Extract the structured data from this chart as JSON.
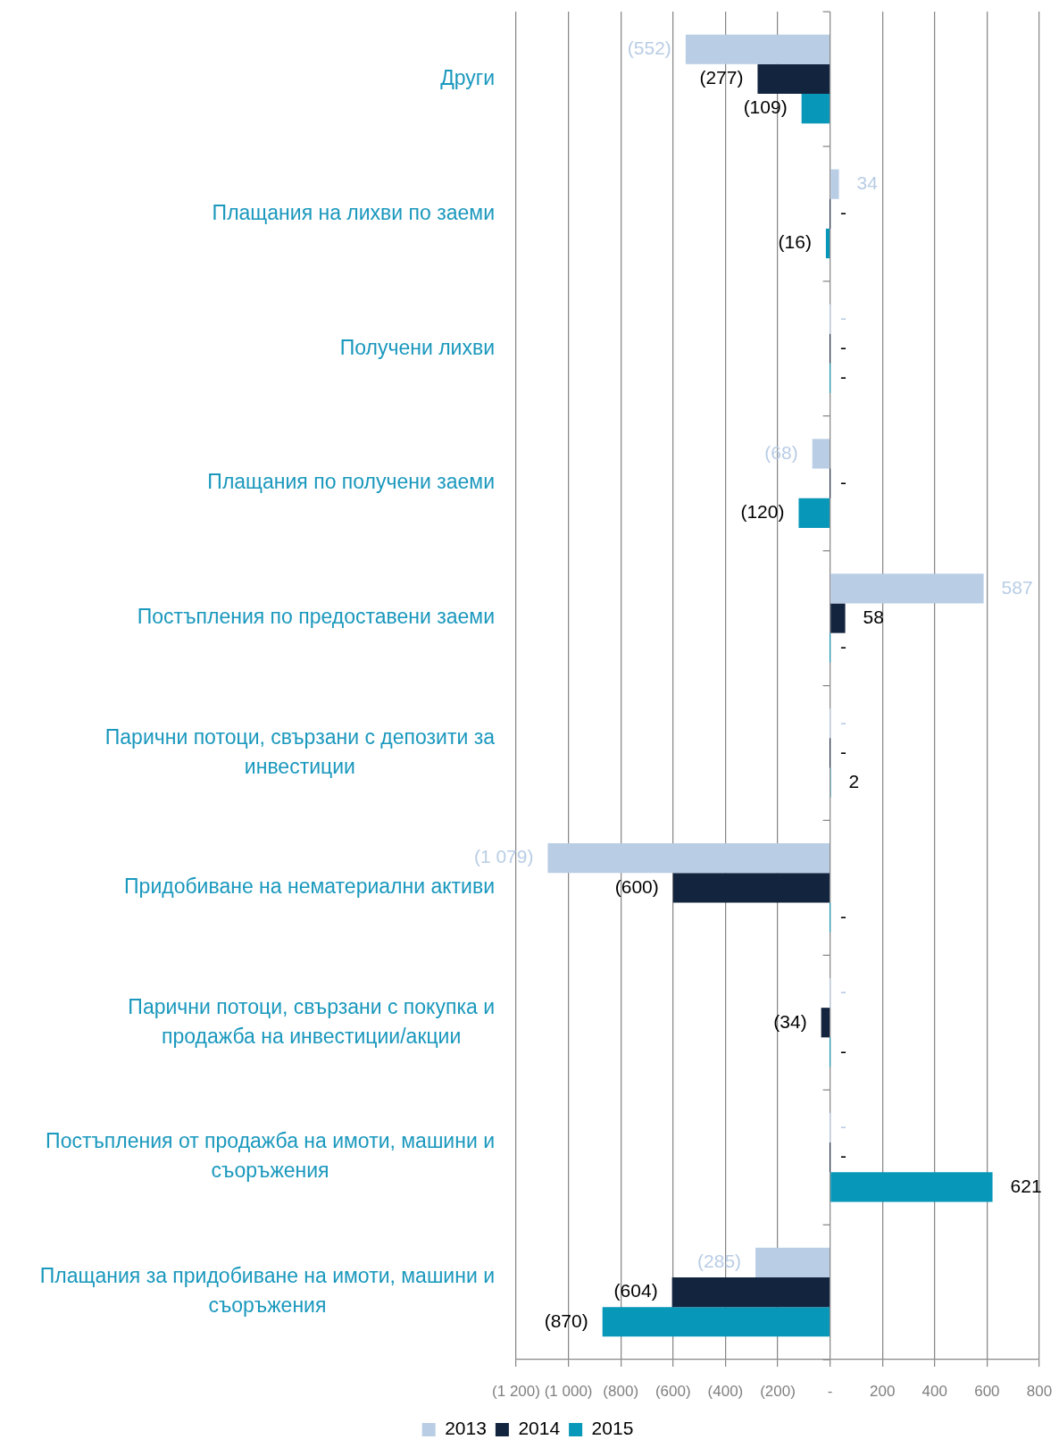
{
  "chart_data": {
    "type": "bar",
    "orientation": "horizontal",
    "categories": [
      "Други",
      "Плащания на лихви по заеми",
      "Получени лихви",
      "Плащания по получени заеми",
      "Постъпления по предоставени заеми",
      "Парични потоци, свързани с депозити за инвестиции",
      "Придобиване на нематериални активи",
      "Парични потоци, свързани с покупка и продажба на инвестиции/акции",
      "Постъпления от продажба на имоти, машини и съоръжения",
      "Плащания за придобиване на имоти, машини и съоръжения"
    ],
    "series": [
      {
        "name": "2013",
        "color": "#b9cde5",
        "values": [
          -552,
          34,
          0,
          -68,
          587,
          0,
          -1079,
          0,
          0,
          -285
        ],
        "value_labels": [
          "(552)",
          "34",
          "-",
          "(68)",
          "587",
          "-",
          "(1 079)",
          "-",
          "-",
          "(285)"
        ]
      },
      {
        "name": "2014",
        "color": "#13243f",
        "values": [
          -277,
          0,
          0,
          0,
          58,
          0,
          -600,
          -34,
          0,
          -604
        ],
        "value_labels": [
          "(277)",
          "-",
          "-",
          "-",
          "58",
          "-",
          "(600)",
          "(34)",
          "-",
          "(604)"
        ]
      },
      {
        "name": "2015",
        "color": "#0797b8",
        "values": [
          -109,
          -16,
          0,
          -120,
          0,
          2,
          0,
          0,
          621,
          -870
        ],
        "value_labels": [
          "(109)",
          "(16)",
          "-",
          "(120)",
          "-",
          "2",
          "-",
          "-",
          "621",
          "(870)"
        ]
      }
    ],
    "xlim": [
      -1200,
      800
    ],
    "xticks": [
      {
        "value": -1200,
        "label": "(1 200)"
      },
      {
        "value": -1000,
        "label": "(1 000)"
      },
      {
        "value": -800,
        "label": "(800)"
      },
      {
        "value": -600,
        "label": "(600)"
      },
      {
        "value": -400,
        "label": "(400)"
      },
      {
        "value": -200,
        "label": "(200)"
      },
      {
        "value": 0,
        "label": "-"
      },
      200,
      400,
      600,
      800
    ],
    "grid": "x",
    "legend": "bottom"
  }
}
